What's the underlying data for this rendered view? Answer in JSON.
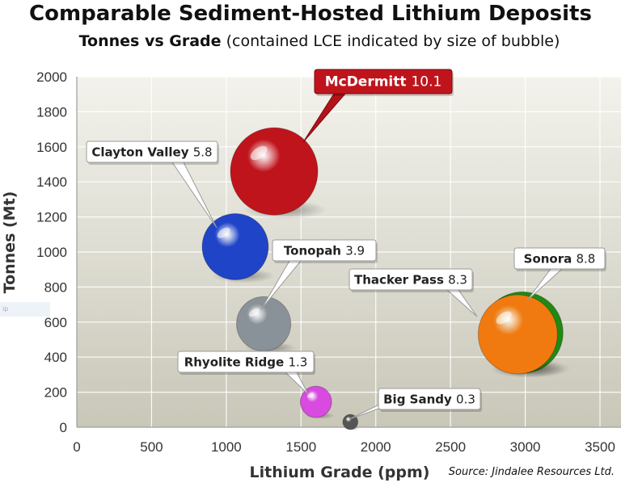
{
  "header": {
    "title": "Comparable Sediment-Hosted Lithium Deposits",
    "subtitle_bold": "Tonnes vs Grade",
    "subtitle_rest": " (contained LCE indicated by size of bubble)"
  },
  "ghost_label": "ip",
  "footer": {
    "source": "Source: Jindalee Resources Ltd."
  },
  "chart_data": {
    "type": "scatter",
    "title": "Comparable Sediment-Hosted Lithium Deposits",
    "subtitle": "Tonnes vs Grade (contained LCE indicated by size of bubble)",
    "xlabel": "Lithium Grade (ppm)",
    "ylabel": "Tonnes (Mt)",
    "xlim": [
      0,
      3750
    ],
    "ylim": [
      0,
      2000
    ],
    "xticks": [
      0,
      500,
      1000,
      1500,
      2000,
      2500,
      3000,
      3500
    ],
    "yticks": [
      0,
      200,
      400,
      600,
      800,
      1000,
      1200,
      1400,
      1600,
      1800,
      2000
    ],
    "grid": true,
    "series": [
      {
        "name": "McDermitt",
        "label": "10.1",
        "x": 1320,
        "y": 1460,
        "size": 10.1,
        "color": "#c0141c"
      },
      {
        "name": "Clayton Valley",
        "label": "5.8",
        "x": 1060,
        "y": 1030,
        "size": 5.8,
        "color": "#1f44c8"
      },
      {
        "name": "Tonopah",
        "label": "3.9",
        "x": 1250,
        "y": 590,
        "size": 3.9,
        "color": "#8a9299"
      },
      {
        "name": "Sonora",
        "label": "8.8",
        "x": 2980,
        "y": 540,
        "size": 8.8,
        "color": "#1f8a12"
      },
      {
        "name": "Thacker Pass",
        "label": "8.3",
        "x": 2950,
        "y": 530,
        "size": 8.3,
        "color": "#f07a10"
      },
      {
        "name": "Rhyolite Ridge",
        "label": "1.3",
        "x": 1600,
        "y": 145,
        "size": 1.3,
        "color": "#d84ae0"
      },
      {
        "name": "Big Sandy",
        "label": "0.3",
        "x": 1830,
        "y": 30,
        "size": 0.3,
        "color": "#555555"
      }
    ]
  }
}
